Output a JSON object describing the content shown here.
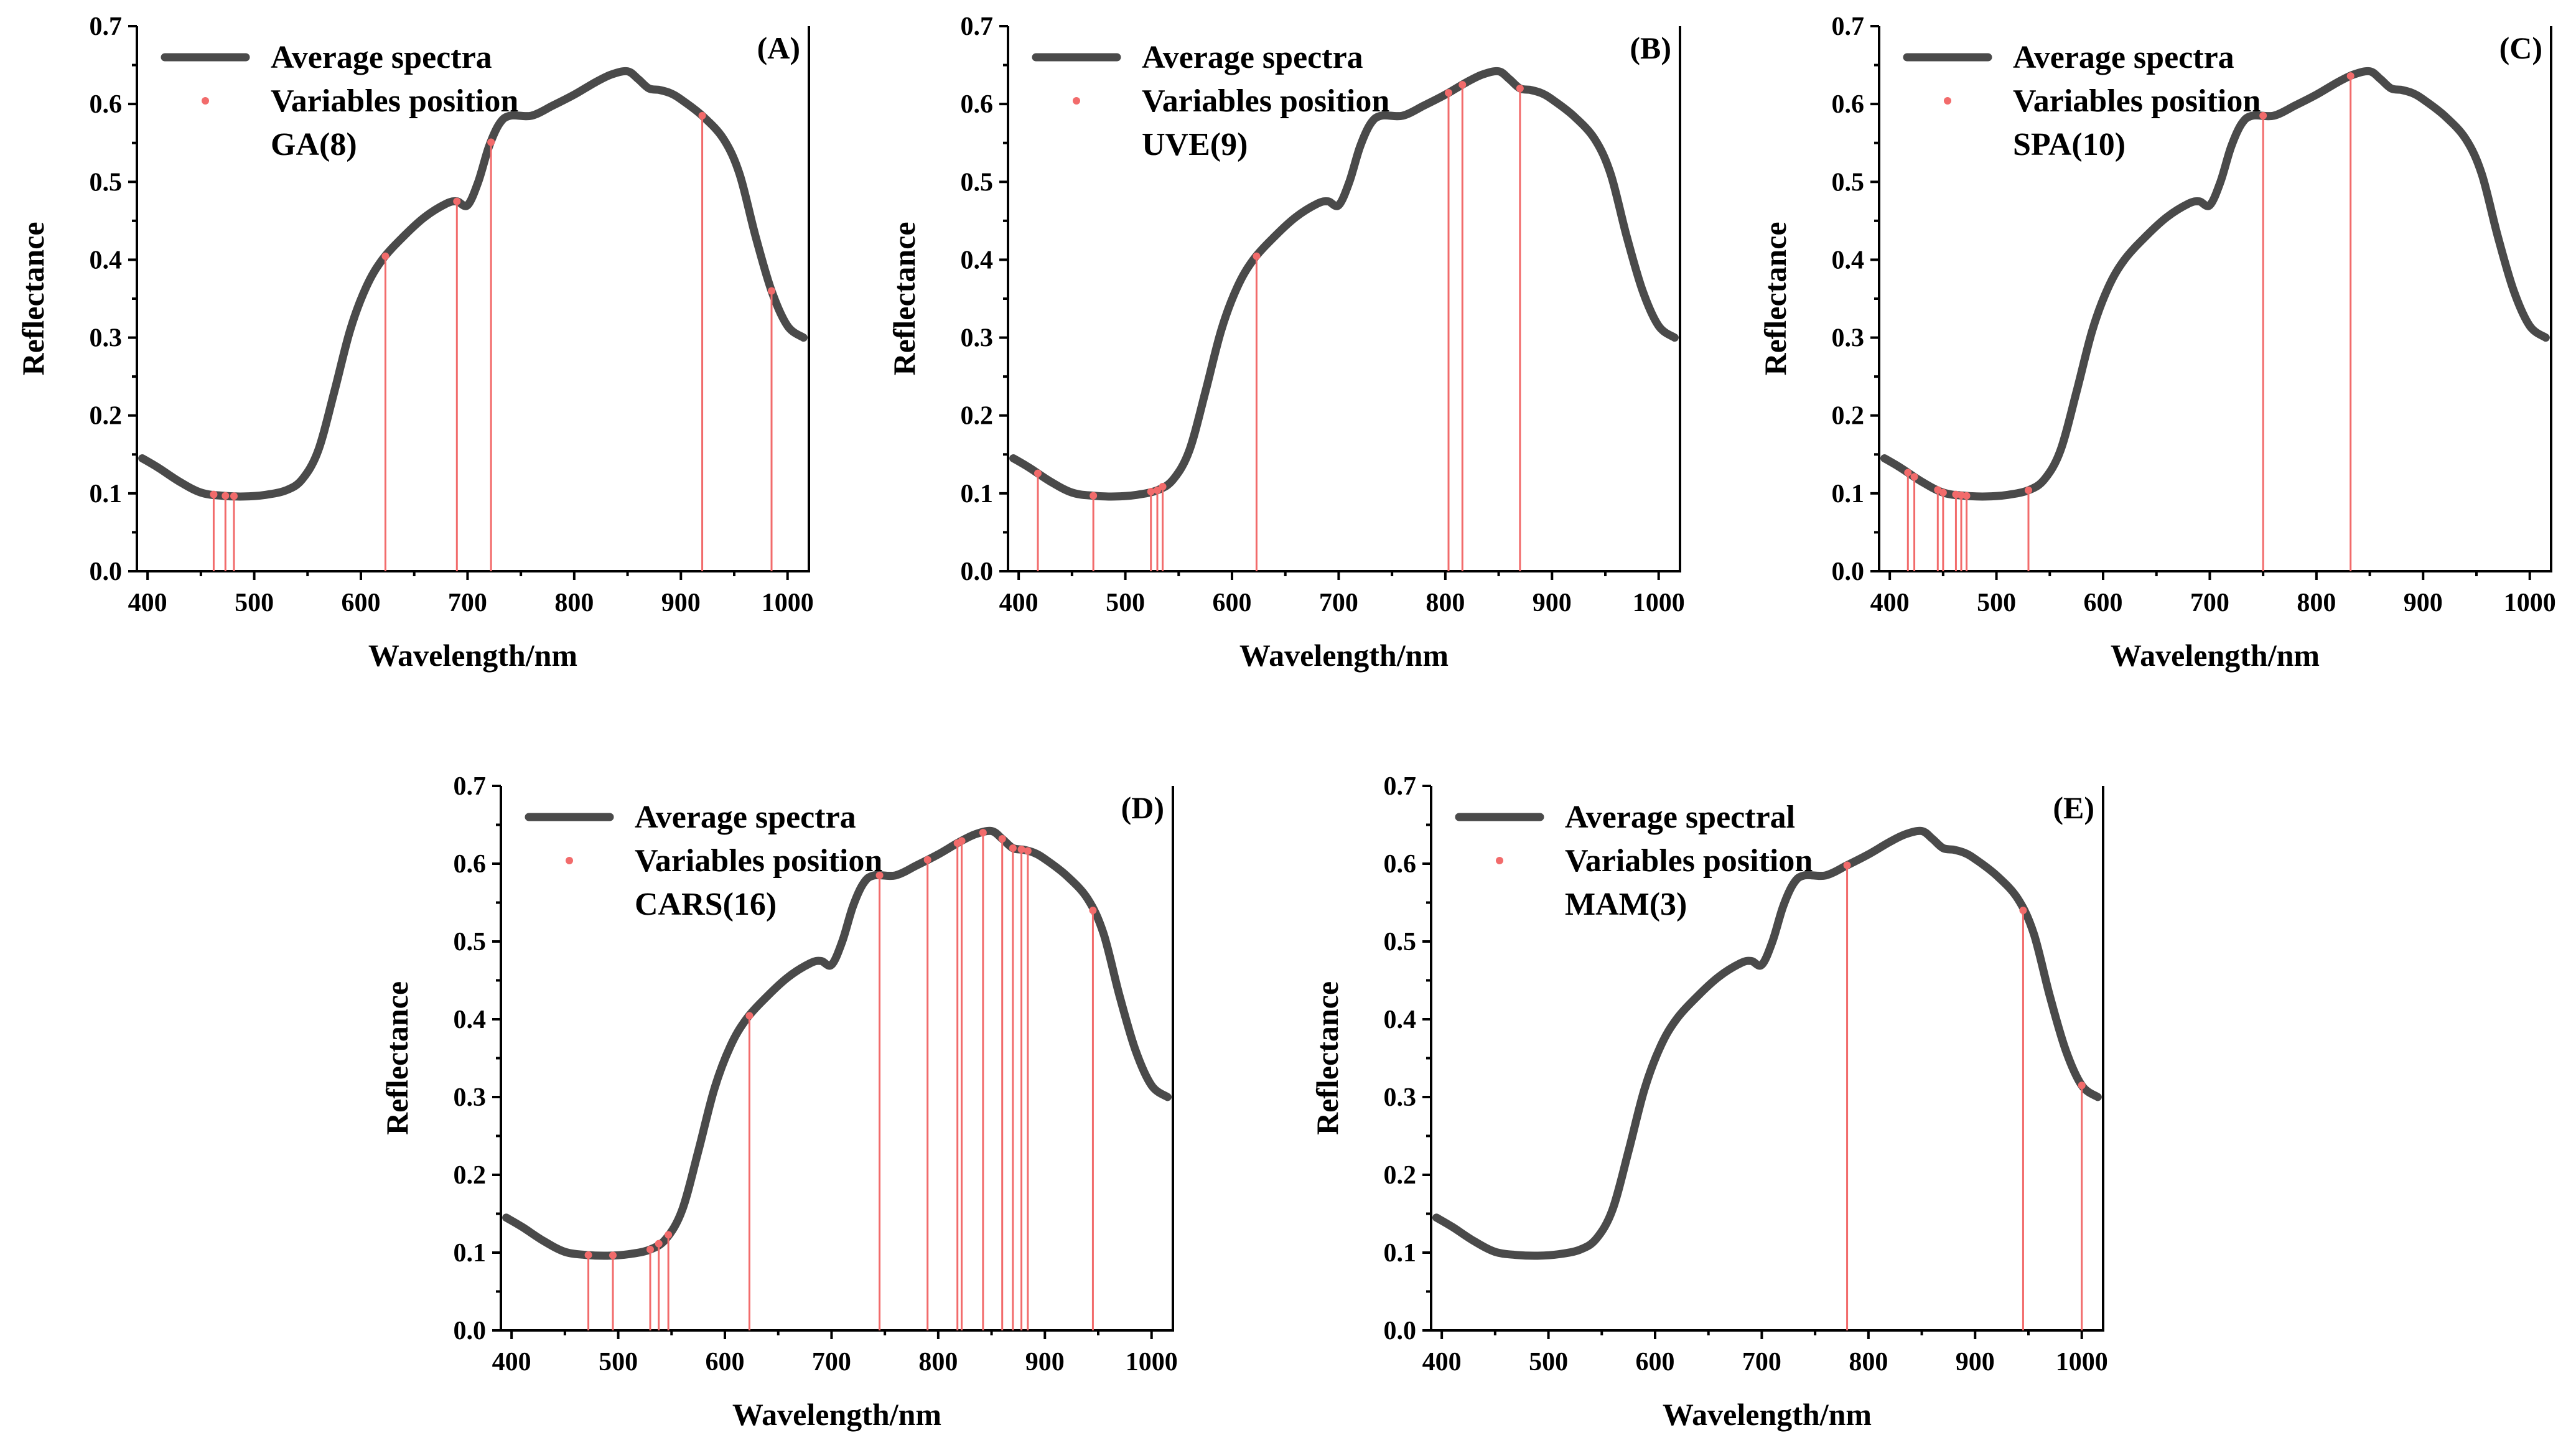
{
  "figure": {
    "name": "spectral-variable-selection-figure"
  },
  "colors": {
    "spectrum": "#4a4a4a",
    "marker": "#f26b6b",
    "axis": "#000000"
  },
  "chart_data": [
    {
      "type": "line",
      "panel": "(A)",
      "legend": {
        "line": "Average spectra",
        "marker": "Variables position",
        "method": "GA(8)"
      },
      "xlabel": "Wavelength/nm",
      "ylabel": "Reflectance",
      "xlim": [
        390,
        1020
      ],
      "ylim": [
        0,
        0.7
      ],
      "xticks": [
        400,
        500,
        600,
        700,
        800,
        900,
        1000
      ],
      "yticks": [
        "0.0",
        "0.1",
        "0.2",
        "0.3",
        "0.4",
        "0.5",
        "0.6",
        "0.7"
      ],
      "series": [
        {
          "name": "Average spectra",
          "x": [
            395,
            410,
            430,
            450,
            470,
            490,
            510,
            530,
            545,
            560,
            575,
            590,
            605,
            620,
            640,
            660,
            680,
            690,
            700,
            710,
            720,
            730,
            740,
            760,
            780,
            800,
            820,
            835,
            850,
            860,
            870,
            880,
            890,
            900,
            920,
            940,
            955,
            970,
            985,
            1000,
            1015
          ],
          "y": [
            0.145,
            0.133,
            0.115,
            0.101,
            0.097,
            0.096,
            0.098,
            0.104,
            0.118,
            0.155,
            0.23,
            0.31,
            0.365,
            0.4,
            0.43,
            0.455,
            0.472,
            0.475,
            0.47,
            0.5,
            0.545,
            0.575,
            0.585,
            0.585,
            0.598,
            0.612,
            0.628,
            0.638,
            0.642,
            0.632,
            0.62,
            0.618,
            0.614,
            0.606,
            0.585,
            0.555,
            0.51,
            0.43,
            0.36,
            0.315,
            0.3
          ]
        }
      ],
      "variables": [
        462,
        473,
        481,
        623,
        690,
        722,
        920,
        985
      ]
    },
    {
      "type": "line",
      "panel": "(B)",
      "legend": {
        "line": "Average spectra",
        "marker": "Variables position",
        "method": "UVE(9)"
      },
      "xlabel": "Wavelength/nm",
      "ylabel": "Reflectance",
      "xlim": [
        390,
        1020
      ],
      "ylim": [
        0,
        0.7
      ],
      "xticks": [
        400,
        500,
        600,
        700,
        800,
        900,
        1000
      ],
      "yticks": [
        "0.0",
        "0.1",
        "0.2",
        "0.3",
        "0.4",
        "0.5",
        "0.6",
        "0.7"
      ],
      "series": [
        {
          "name": "Average spectra",
          "x": [
            395,
            410,
            430,
            450,
            470,
            490,
            510,
            530,
            545,
            560,
            575,
            590,
            605,
            620,
            640,
            660,
            680,
            690,
            700,
            710,
            720,
            730,
            740,
            760,
            780,
            800,
            820,
            835,
            850,
            860,
            870,
            880,
            890,
            900,
            920,
            940,
            955,
            970,
            985,
            1000,
            1015
          ],
          "y": [
            0.145,
            0.133,
            0.115,
            0.101,
            0.097,
            0.096,
            0.098,
            0.104,
            0.118,
            0.155,
            0.23,
            0.31,
            0.365,
            0.4,
            0.43,
            0.455,
            0.472,
            0.475,
            0.47,
            0.5,
            0.545,
            0.575,
            0.585,
            0.585,
            0.598,
            0.612,
            0.628,
            0.638,
            0.642,
            0.632,
            0.62,
            0.618,
            0.614,
            0.606,
            0.585,
            0.555,
            0.51,
            0.43,
            0.36,
            0.315,
            0.3
          ]
        }
      ],
      "variables": [
        418,
        470,
        524,
        530,
        535,
        623,
        803,
        816,
        870
      ]
    },
    {
      "type": "line",
      "panel": "(C)",
      "legend": {
        "line": "Average spectra",
        "marker": "Variables position",
        "method": "SPA(10)"
      },
      "xlabel": "Wavelength/nm",
      "ylabel": "Reflectance",
      "xlim": [
        390,
        1020
      ],
      "ylim": [
        0,
        0.7
      ],
      "xticks": [
        400,
        500,
        600,
        700,
        800,
        900,
        1000
      ],
      "yticks": [
        "0.0",
        "0.1",
        "0.2",
        "0.3",
        "0.4",
        "0.5",
        "0.6",
        "0.7"
      ],
      "series": [
        {
          "name": "Average spectra",
          "x": [
            395,
            410,
            430,
            450,
            470,
            490,
            510,
            530,
            545,
            560,
            575,
            590,
            605,
            620,
            640,
            660,
            680,
            690,
            700,
            710,
            720,
            730,
            740,
            760,
            780,
            800,
            820,
            835,
            850,
            860,
            870,
            880,
            890,
            900,
            920,
            940,
            955,
            970,
            985,
            1000,
            1015
          ],
          "y": [
            0.145,
            0.133,
            0.115,
            0.101,
            0.097,
            0.096,
            0.098,
            0.104,
            0.118,
            0.155,
            0.23,
            0.31,
            0.365,
            0.4,
            0.43,
            0.455,
            0.472,
            0.475,
            0.47,
            0.5,
            0.545,
            0.575,
            0.585,
            0.585,
            0.598,
            0.612,
            0.628,
            0.638,
            0.642,
            0.632,
            0.62,
            0.618,
            0.614,
            0.606,
            0.585,
            0.555,
            0.51,
            0.43,
            0.36,
            0.315,
            0.3
          ]
        }
      ],
      "variables": [
        417,
        423,
        445,
        450,
        462,
        467,
        472,
        530,
        750,
        832
      ]
    },
    {
      "type": "line",
      "panel": "(D)",
      "legend": {
        "line": "Average spectra",
        "marker": "Variables position",
        "method": "CARS(16)"
      },
      "xlabel": "Wavelength/nm",
      "ylabel": "Reflectance",
      "xlim": [
        390,
        1020
      ],
      "ylim": [
        0,
        0.7
      ],
      "xticks": [
        400,
        500,
        600,
        700,
        800,
        900,
        1000
      ],
      "yticks": [
        "0.0",
        "0.1",
        "0.2",
        "0.3",
        "0.4",
        "0.5",
        "0.6",
        "0.7"
      ],
      "series": [
        {
          "name": "Average spectra",
          "x": [
            395,
            410,
            430,
            450,
            470,
            490,
            510,
            530,
            545,
            560,
            575,
            590,
            605,
            620,
            640,
            660,
            680,
            690,
            700,
            710,
            720,
            730,
            740,
            760,
            780,
            800,
            820,
            835,
            850,
            860,
            870,
            880,
            890,
            900,
            920,
            940,
            955,
            970,
            985,
            1000,
            1015
          ],
          "y": [
            0.145,
            0.133,
            0.115,
            0.101,
            0.097,
            0.096,
            0.098,
            0.104,
            0.118,
            0.155,
            0.23,
            0.31,
            0.365,
            0.4,
            0.43,
            0.455,
            0.472,
            0.475,
            0.47,
            0.5,
            0.545,
            0.575,
            0.585,
            0.585,
            0.598,
            0.612,
            0.628,
            0.638,
            0.642,
            0.632,
            0.62,
            0.618,
            0.614,
            0.606,
            0.585,
            0.555,
            0.51,
            0.43,
            0.36,
            0.315,
            0.3
          ]
        }
      ],
      "variables": [
        472,
        495,
        530,
        538,
        547,
        623,
        745,
        790,
        818,
        822,
        842,
        860,
        870,
        878,
        884,
        945
      ]
    },
    {
      "type": "line",
      "panel": "(E)",
      "legend": {
        "line": "Average spectral",
        "marker": "Variables position",
        "method": "MAM(3)"
      },
      "xlabel": "Wavelength/nm",
      "ylabel": "Reflectance",
      "xlim": [
        390,
        1020
      ],
      "ylim": [
        0,
        0.7
      ],
      "xticks": [
        400,
        500,
        600,
        700,
        800,
        900,
        1000
      ],
      "yticks": [
        "0.0",
        "0.1",
        "0.2",
        "0.3",
        "0.4",
        "0.5",
        "0.6",
        "0.7"
      ],
      "series": [
        {
          "name": "Average spectral",
          "x": [
            395,
            410,
            430,
            450,
            470,
            490,
            510,
            530,
            545,
            560,
            575,
            590,
            605,
            620,
            640,
            660,
            680,
            690,
            700,
            710,
            720,
            730,
            740,
            760,
            780,
            800,
            820,
            835,
            850,
            860,
            870,
            880,
            890,
            900,
            920,
            940,
            955,
            970,
            985,
            1000,
            1015
          ],
          "y": [
            0.145,
            0.133,
            0.115,
            0.101,
            0.097,
            0.096,
            0.098,
            0.104,
            0.118,
            0.155,
            0.23,
            0.31,
            0.365,
            0.4,
            0.43,
            0.455,
            0.472,
            0.475,
            0.47,
            0.5,
            0.545,
            0.575,
            0.585,
            0.585,
            0.598,
            0.612,
            0.628,
            0.638,
            0.642,
            0.632,
            0.62,
            0.618,
            0.614,
            0.606,
            0.585,
            0.555,
            0.51,
            0.43,
            0.36,
            0.315,
            0.3
          ]
        }
      ],
      "variables": [
        780,
        945,
        1000
      ]
    }
  ]
}
